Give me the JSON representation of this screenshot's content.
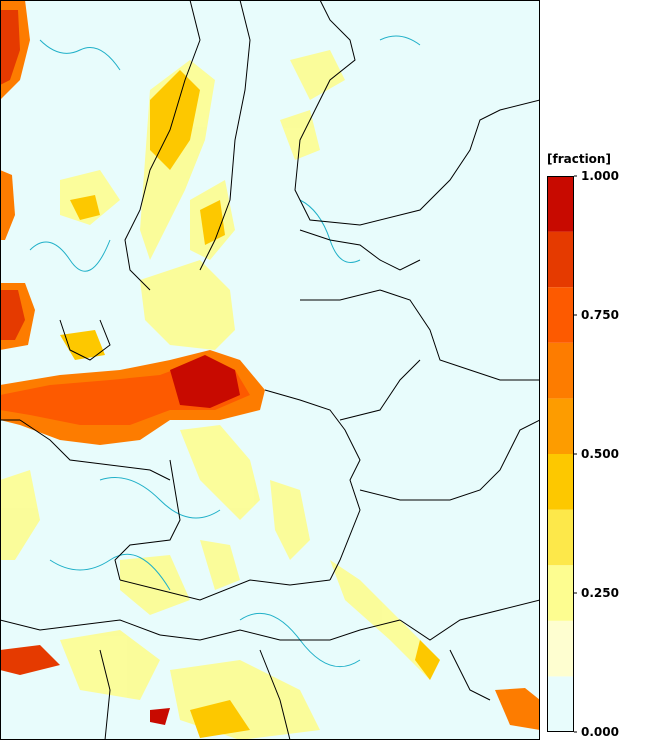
{
  "legend": {
    "title": "[fraction]",
    "colors": [
      "#e8fcfc",
      "#fefed0",
      "#fdfd90",
      "#fde84a",
      "#fdc800",
      "#fd9c00",
      "#fd7c00",
      "#fd5a00",
      "#e53a00",
      "#c80a00"
    ],
    "tick_labels": [
      "1.000",
      "0.750",
      "0.500",
      "0.250",
      "0.000"
    ],
    "tick_values": [
      1.0,
      0.75,
      0.5,
      0.25,
      0.0
    ]
  },
  "map": {
    "sea_color": "#e8fcfc",
    "contour_color": "#20b0c8",
    "border_color": "#000000"
  }
}
